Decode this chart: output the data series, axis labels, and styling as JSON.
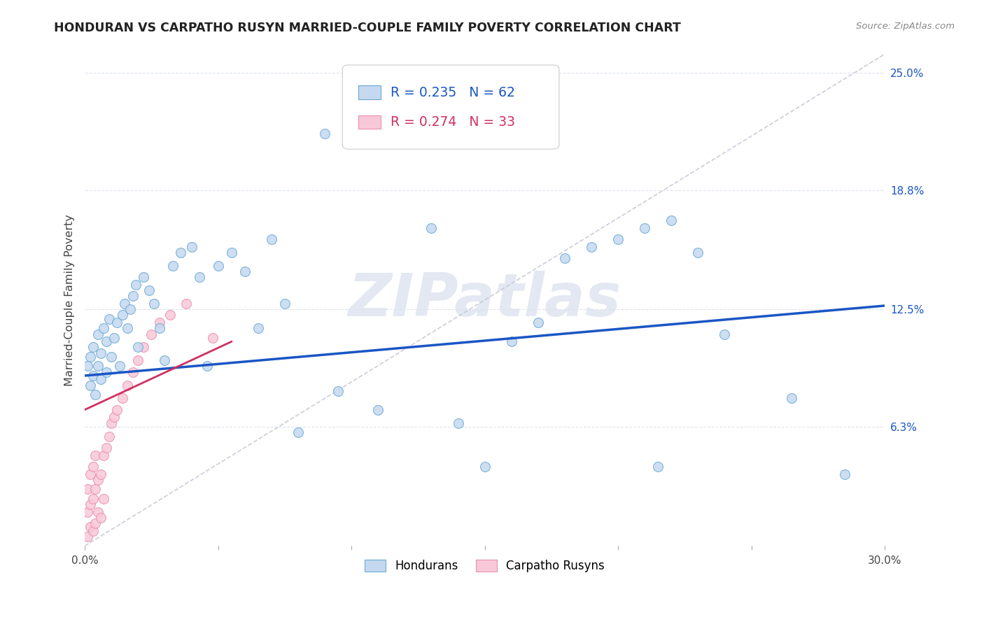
{
  "title": "HONDURAN VS CARPATHO RUSYN MARRIED-COUPLE FAMILY POVERTY CORRELATION CHART",
  "source": "Source: ZipAtlas.com",
  "ylabel": "Married-Couple Family Poverty",
  "xmin": 0.0,
  "xmax": 0.3,
  "ymin": 0.0,
  "ymax": 0.26,
  "ytick_vals": [
    0.063,
    0.125,
    0.188,
    0.25
  ],
  "ytick_labels": [
    "6.3%",
    "12.5%",
    "18.8%",
    "25.0%"
  ],
  "xtick_vals": [
    0.0,
    0.05,
    0.1,
    0.15,
    0.2,
    0.25,
    0.3
  ],
  "xtick_labels": [
    "0.0%",
    "",
    "",
    "",
    "",
    "",
    "30.0%"
  ],
  "legend_blue_r": "R = 0.235",
  "legend_blue_n": "N = 62",
  "legend_pink_r": "R = 0.274",
  "legend_pink_n": "N = 33",
  "blue_fill": "#c5d8f0",
  "blue_edge": "#6aaad4",
  "pink_fill": "#f8c8d8",
  "pink_edge": "#e890b0",
  "blue_line_color": "#1a56c4",
  "pink_line_color": "#d03060",
  "diag_line_color": "#c8c8d8",
  "grid_color": "#dde4ee",
  "bg_color": "#ffffff",
  "marker_size": 100,
  "honduran_x": [
    0.001,
    0.002,
    0.002,
    0.003,
    0.003,
    0.004,
    0.005,
    0.005,
    0.006,
    0.006,
    0.007,
    0.008,
    0.008,
    0.009,
    0.01,
    0.011,
    0.012,
    0.013,
    0.014,
    0.015,
    0.016,
    0.017,
    0.018,
    0.019,
    0.02,
    0.022,
    0.024,
    0.026,
    0.028,
    0.03,
    0.033,
    0.036,
    0.04,
    0.043,
    0.046,
    0.05,
    0.055,
    0.06,
    0.065,
    0.07,
    0.075,
    0.08,
    0.09,
    0.095,
    0.1,
    0.11,
    0.12,
    0.13,
    0.14,
    0.15,
    0.16,
    0.17,
    0.18,
    0.19,
    0.2,
    0.21,
    0.215,
    0.22,
    0.23,
    0.24,
    0.265,
    0.285
  ],
  "honduran_y": [
    0.095,
    0.085,
    0.1,
    0.09,
    0.105,
    0.08,
    0.095,
    0.112,
    0.088,
    0.102,
    0.115,
    0.092,
    0.108,
    0.12,
    0.1,
    0.11,
    0.118,
    0.095,
    0.122,
    0.128,
    0.115,
    0.125,
    0.132,
    0.138,
    0.105,
    0.142,
    0.135,
    0.128,
    0.115,
    0.098,
    0.148,
    0.155,
    0.158,
    0.142,
    0.095,
    0.148,
    0.155,
    0.145,
    0.115,
    0.162,
    0.128,
    0.06,
    0.218,
    0.082,
    0.218,
    0.072,
    0.225,
    0.168,
    0.065,
    0.042,
    0.108,
    0.118,
    0.152,
    0.158,
    0.162,
    0.168,
    0.042,
    0.172,
    0.155,
    0.112,
    0.078,
    0.038
  ],
  "rusyn_x": [
    0.001,
    0.001,
    0.001,
    0.002,
    0.002,
    0.002,
    0.003,
    0.003,
    0.003,
    0.004,
    0.004,
    0.004,
    0.005,
    0.005,
    0.006,
    0.006,
    0.007,
    0.007,
    0.008,
    0.009,
    0.01,
    0.011,
    0.012,
    0.014,
    0.016,
    0.018,
    0.02,
    0.022,
    0.025,
    0.028,
    0.032,
    0.038,
    0.048
  ],
  "rusyn_y": [
    0.005,
    0.018,
    0.03,
    0.01,
    0.022,
    0.038,
    0.008,
    0.025,
    0.042,
    0.012,
    0.03,
    0.048,
    0.018,
    0.035,
    0.015,
    0.038,
    0.025,
    0.048,
    0.052,
    0.058,
    0.065,
    0.068,
    0.072,
    0.078,
    0.085,
    0.092,
    0.098,
    0.105,
    0.112,
    0.118,
    0.122,
    0.128,
    0.11
  ],
  "watermark_text": "ZIPatlas",
  "bottom_legend_labels": [
    "Hondurans",
    "Carpatho Rusyns"
  ],
  "blue_line_start_y": 0.09,
  "blue_line_end_y": 0.127,
  "pink_line_start_y": 0.072,
  "pink_line_end_y": 0.108,
  "pink_line_end_x": 0.055
}
